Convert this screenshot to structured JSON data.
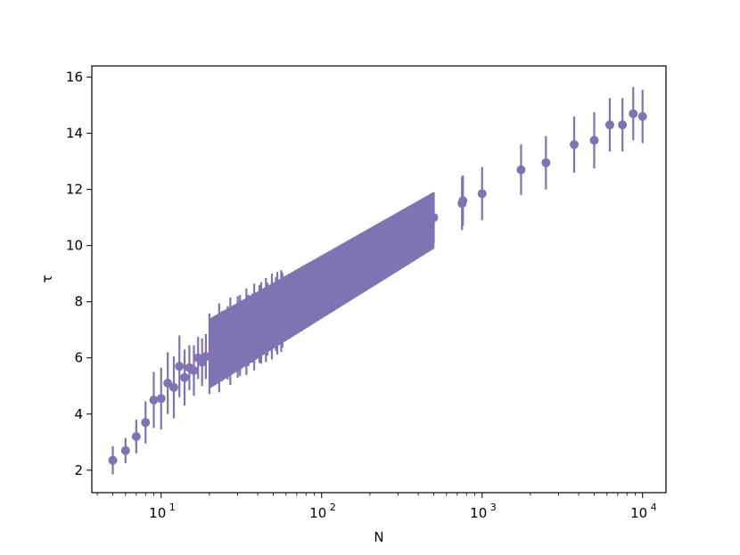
{
  "chart_data": {
    "type": "scatter",
    "xlabel": "N",
    "ylabel": "τ",
    "xscale": "log",
    "xlim": [
      3.7,
      14000
    ],
    "ylim": [
      1.2,
      16.4
    ],
    "grid": false,
    "color": "#7f73b3",
    "xticks": [
      {
        "value": 10,
        "base": "10",
        "exp": "1"
      },
      {
        "value": 100,
        "base": "10",
        "exp": "2"
      },
      {
        "value": 1000,
        "base": "10",
        "exp": "3"
      },
      {
        "value": 10000,
        "base": "10",
        "exp": "4"
      }
    ],
    "yticks": [
      "2",
      "4",
      "6",
      "8",
      "10",
      "12",
      "14",
      "16"
    ],
    "dense_band": {
      "x_from": 20,
      "x_to": 500,
      "lower_at_start": 4.9,
      "upper_at_start": 7.4,
      "lower_at_end": 9.9,
      "upper_at_end": 11.9
    },
    "points": [
      {
        "x": 5,
        "y": 2.35,
        "err": 0.5
      },
      {
        "x": 6,
        "y": 2.7,
        "err": 0.45
      },
      {
        "x": 7,
        "y": 3.2,
        "err": 0.6
      },
      {
        "x": 8,
        "y": 3.7,
        "err": 0.75
      },
      {
        "x": 9,
        "y": 4.5,
        "err": 1.0
      },
      {
        "x": 10,
        "y": 4.55,
        "err": 1.1
      },
      {
        "x": 11,
        "y": 5.1,
        "err": 1.1
      },
      {
        "x": 12,
        "y": 4.95,
        "err": 1.1
      },
      {
        "x": 13,
        "y": 5.7,
        "err": 1.1
      },
      {
        "x": 14,
        "y": 5.3,
        "err": 1.0
      },
      {
        "x": 15,
        "y": 5.65,
        "err": 0.8
      },
      {
        "x": 16,
        "y": 5.55,
        "err": 0.9
      },
      {
        "x": 17,
        "y": 6.0,
        "err": 0.75
      },
      {
        "x": 18,
        "y": 5.85,
        "err": 0.85
      },
      {
        "x": 19,
        "y": 6.05,
        "err": 0.8
      },
      {
        "x": 500,
        "y": 11.0,
        "err": 0.9
      },
      {
        "x": 750,
        "y": 11.5,
        "err": 0.95
      },
      {
        "x": 760,
        "y": 11.6,
        "err": 0.9
      },
      {
        "x": 1000,
        "y": 11.85,
        "err": 0.95
      },
      {
        "x": 1750,
        "y": 12.7,
        "err": 0.9
      },
      {
        "x": 2500,
        "y": 12.95,
        "err": 0.95
      },
      {
        "x": 3750,
        "y": 13.6,
        "err": 1.0
      },
      {
        "x": 5000,
        "y": 13.75,
        "err": 1.0
      },
      {
        "x": 6250,
        "y": 14.3,
        "err": 0.95
      },
      {
        "x": 7500,
        "y": 14.3,
        "err": 0.95
      },
      {
        "x": 8750,
        "y": 14.7,
        "err": 0.95
      },
      {
        "x": 10000,
        "y": 14.6,
        "err": 0.95
      }
    ]
  }
}
